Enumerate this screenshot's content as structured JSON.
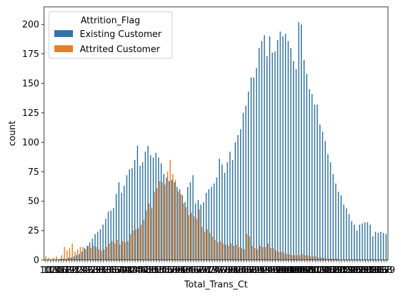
{
  "chart_data": {
    "type": "bar",
    "xlabel": "Total_Trans_Ct",
    "ylabel": "count",
    "ylim": [
      0,
      215
    ],
    "yticks": [
      0,
      25,
      50,
      75,
      100,
      125,
      150,
      175,
      200
    ],
    "x_min": 10,
    "x_max": 139,
    "legend": {
      "title": "Attrition_Flag",
      "placement": "top-left"
    },
    "series": [
      {
        "name": "Existing Customer",
        "color": "#3274a1",
        "values": [
          0,
          0,
          0,
          0,
          0,
          0,
          1,
          1,
          1,
          2,
          2,
          3,
          4,
          5,
          7,
          10,
          12,
          15,
          18,
          22,
          24,
          26,
          30,
          35,
          41,
          42,
          44,
          56,
          66,
          57,
          63,
          72,
          77,
          78,
          85,
          97,
          80,
          83,
          92,
          97,
          89,
          87,
          91,
          87,
          82,
          73,
          70,
          67,
          68,
          66,
          62,
          60,
          55,
          49,
          62,
          66,
          72,
          48,
          51,
          47,
          49,
          57,
          60,
          62,
          65,
          70,
          86,
          81,
          74,
          83,
          92,
          85,
          100,
          106,
          111,
          125,
          131,
          143,
          155,
          155,
          163,
          180,
          186,
          191,
          173,
          190,
          176,
          177,
          187,
          194,
          190,
          192,
          186,
          180,
          169,
          162,
          202,
          200,
          170,
          158,
          145,
          141,
          132,
          132,
          115,
          109,
          101,
          90,
          83,
          73,
          65,
          58,
          55,
          47,
          44,
          39,
          33,
          30,
          25,
          30,
          31,
          32,
          32,
          30,
          20,
          24,
          23,
          24,
          23,
          22
        ]
      },
      {
        "name": "Attrited Customer",
        "color": "#e1812c",
        "values": [
          3,
          2,
          1,
          2,
          3,
          1,
          4,
          11,
          8,
          10,
          14,
          7,
          9,
          11,
          11,
          9,
          12,
          10,
          12,
          11,
          9,
          8,
          9,
          11,
          14,
          16,
          14,
          17,
          13,
          16,
          15,
          16,
          22,
          25,
          26,
          27,
          30,
          34,
          42,
          48,
          44,
          58,
          61,
          67,
          66,
          64,
          75,
          85,
          73,
          68,
          58,
          56,
          48,
          45,
          38,
          40,
          37,
          35,
          43,
          28,
          24,
          26,
          23,
          20,
          17,
          15,
          16,
          14,
          13,
          12,
          14,
          12,
          13,
          11,
          10,
          9,
          22,
          20,
          12,
          10,
          9,
          12,
          11,
          11,
          14,
          10,
          10,
          8,
          7,
          7,
          6,
          5,
          5,
          4,
          4,
          4,
          4,
          5,
          4,
          4,
          3,
          3,
          3,
          2,
          2,
          2,
          1,
          1,
          1,
          1,
          1,
          0,
          0,
          0,
          0,
          0,
          0,
          0,
          0,
          0,
          0,
          0,
          0,
          0,
          0,
          0,
          0,
          0,
          0,
          0
        ]
      }
    ]
  }
}
